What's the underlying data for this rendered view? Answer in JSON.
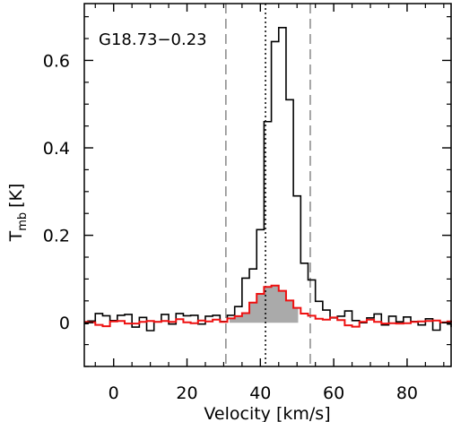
{
  "chart_data": {
    "type": "line",
    "annotation": "G18.73−0.23",
    "xlabel": "Velocity [km/s]",
    "ylabel_main": "T",
    "ylabel_sub": "mb",
    "ylabel_unit": "[K]",
    "xlim": [
      -8,
      92
    ],
    "ylim": [
      -0.1,
      0.73
    ],
    "x_ticks": [
      0,
      20,
      40,
      60,
      80
    ],
    "y_ticks": [
      0,
      0.2,
      0.4,
      0.6
    ],
    "x_tick_labels": [
      "0",
      "20",
      "40",
      "60",
      "80"
    ],
    "y_tick_labels": [
      "0",
      "0.2",
      "0.4",
      "0.6"
    ],
    "grid": false,
    "vlines": [
      {
        "x": 30.6,
        "style": "dashed",
        "color": "#888888"
      },
      {
        "x": 41.4,
        "style": "dotted",
        "color": "#000000"
      },
      {
        "x": 53.6,
        "style": "dashed",
        "color": "#888888"
      }
    ],
    "shaded_region": {
      "x_range": [
        31.6,
        50.3
      ],
      "series": "red",
      "color": "#aaaaaa"
    },
    "series": [
      {
        "key": "black",
        "color": "#000000",
        "style": "step",
        "x": [
          -8.0,
          -7.0,
          -5.0,
          -3.0,
          -1.0,
          1.0,
          3.0,
          5.0,
          7.0,
          9.0,
          11.0,
          13.0,
          15.0,
          17.0,
          19.0,
          21.0,
          23.0,
          25.0,
          27.0,
          29.0,
          31.0,
          33.0,
          35.0,
          37.0,
          39.0,
          41.0,
          43.0,
          45.0,
          47.0,
          49.0,
          51.0,
          53.0,
          55.0,
          57.0,
          59.0,
          61.0,
          63.0,
          65.0,
          67.0,
          69.0,
          71.0,
          73.0,
          75.0,
          77.0,
          79.0,
          81.0,
          83.0,
          85.0,
          87.0,
          89.0,
          91.0,
          92.0
        ],
        "y": [
          -0.002,
          0.004,
          0.021,
          0.016,
          0.005,
          0.017,
          0.019,
          -0.01,
          0.012,
          -0.018,
          0.002,
          0.019,
          -0.003,
          0.021,
          0.016,
          0.017,
          -0.003,
          0.015,
          0.017,
          0.003,
          0.017,
          0.037,
          0.102,
          0.123,
          0.213,
          0.46,
          0.643,
          0.675,
          0.51,
          0.29,
          0.136,
          0.098,
          0.049,
          0.029,
          0.011,
          0.015,
          0.027,
          0.005,
          0.0,
          0.011,
          0.02,
          -0.005,
          0.015,
          0.002,
          0.013,
          0.003,
          -0.005,
          0.009,
          -0.017,
          0.0,
          -0.003,
          -0.01
        ]
      },
      {
        "key": "red",
        "color": "#ee1111",
        "style": "step",
        "x": [
          -8.0,
          -7.0,
          -5.0,
          -3.0,
          -1.0,
          1.0,
          3.0,
          5.0,
          7.0,
          9.0,
          11.0,
          13.0,
          15.0,
          17.0,
          19.0,
          21.0,
          23.0,
          25.0,
          27.0,
          29.0,
          31.0,
          33.0,
          35.0,
          37.0,
          39.0,
          41.0,
          43.0,
          45.0,
          47.0,
          49.0,
          51.0,
          53.0,
          55.0,
          57.0,
          59.0,
          61.0,
          63.0,
          65.0,
          67.0,
          69.0,
          71.0,
          73.0,
          75.0,
          77.0,
          79.0,
          81.0,
          83.0,
          85.0,
          87.0,
          89.0,
          91.0,
          92.0
        ],
        "y": [
          0.002,
          0.001,
          -0.005,
          -0.008,
          0.003,
          0.004,
          -0.002,
          -0.002,
          0.002,
          0.004,
          0.002,
          0.004,
          0.002,
          0.008,
          0.001,
          -0.001,
          0.005,
          0.003,
          0.007,
          0.002,
          0.01,
          0.015,
          0.022,
          0.046,
          0.066,
          0.082,
          0.085,
          0.073,
          0.051,
          0.034,
          0.021,
          0.016,
          0.009,
          0.007,
          0.012,
          0.006,
          -0.006,
          -0.009,
          0.002,
          0.007,
          0.002,
          -0.002,
          -0.001,
          -0.002,
          -0.001,
          0.002,
          0.003,
          0.004,
          0.005,
          0.001,
          0.003,
          0.0
        ]
      }
    ]
  }
}
